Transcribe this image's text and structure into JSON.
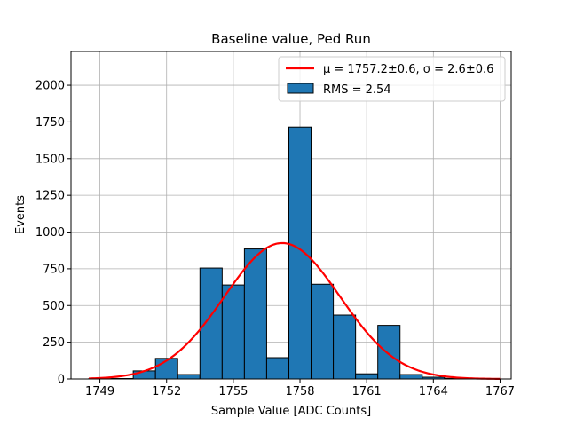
{
  "chart_data": {
    "type": "bar",
    "title": "Baseline value, Ped Run",
    "xlabel": "Sample Value [ADC Counts]",
    "ylabel": "Events",
    "xlim": [
      1747.7,
      1767.5
    ],
    "ylim": [
      0,
      2230
    ],
    "grid": true,
    "x_ticks": [
      1749,
      1752,
      1755,
      1758,
      1761,
      1764,
      1767
    ],
    "x_tick_labels": [
      "1749",
      "1752",
      "1755",
      "1758",
      "1761",
      "1764",
      "1767"
    ],
    "y_ticks": [
      0,
      250,
      500,
      750,
      1000,
      1250,
      1500,
      1750,
      2000
    ],
    "y_tick_labels": [
      "0",
      "250",
      "500",
      "750",
      "1000",
      "1250",
      "1500",
      "1750",
      "2000"
    ],
    "legend_position": "top-right",
    "series": [
      {
        "name": "RMS = 2.54",
        "type": "histogram",
        "color": "#1f77b4",
        "edge_color": "#000000",
        "bin_width": 1.0,
        "bins": [
          {
            "left": 1748.5,
            "value": 2
          },
          {
            "left": 1749.5,
            "value": 3
          },
          {
            "left": 1750.5,
            "value": 55
          },
          {
            "left": 1751.5,
            "value": 140
          },
          {
            "left": 1752.5,
            "value": 30
          },
          {
            "left": 1753.5,
            "value": 755
          },
          {
            "left": 1754.5,
            "value": 640
          },
          {
            "left": 1755.5,
            "value": 885
          },
          {
            "left": 1756.5,
            "value": 145
          },
          {
            "left": 1757.5,
            "value": 1715
          },
          {
            "left": 1758.5,
            "value": 645
          },
          {
            "left": 1759.5,
            "value": 435
          },
          {
            "left": 1760.5,
            "value": 35
          },
          {
            "left": 1761.5,
            "value": 365
          },
          {
            "left": 1762.5,
            "value": 30
          },
          {
            "left": 1763.5,
            "value": 12
          },
          {
            "left": 1764.5,
            "value": 4
          }
        ]
      },
      {
        "name": "μ = 1757.2±0.6, σ = 2.6±0.6",
        "type": "gaussian",
        "color": "#ff0000",
        "mu": 1757.2,
        "sigma": 2.6,
        "amplitude": 925,
        "x_range": [
          1748.5,
          1767
        ]
      }
    ],
    "legend": {
      "fit_label": "μ = 1757.2±0.6, σ = 2.6±0.6",
      "hist_label": "RMS = 2.54"
    }
  }
}
